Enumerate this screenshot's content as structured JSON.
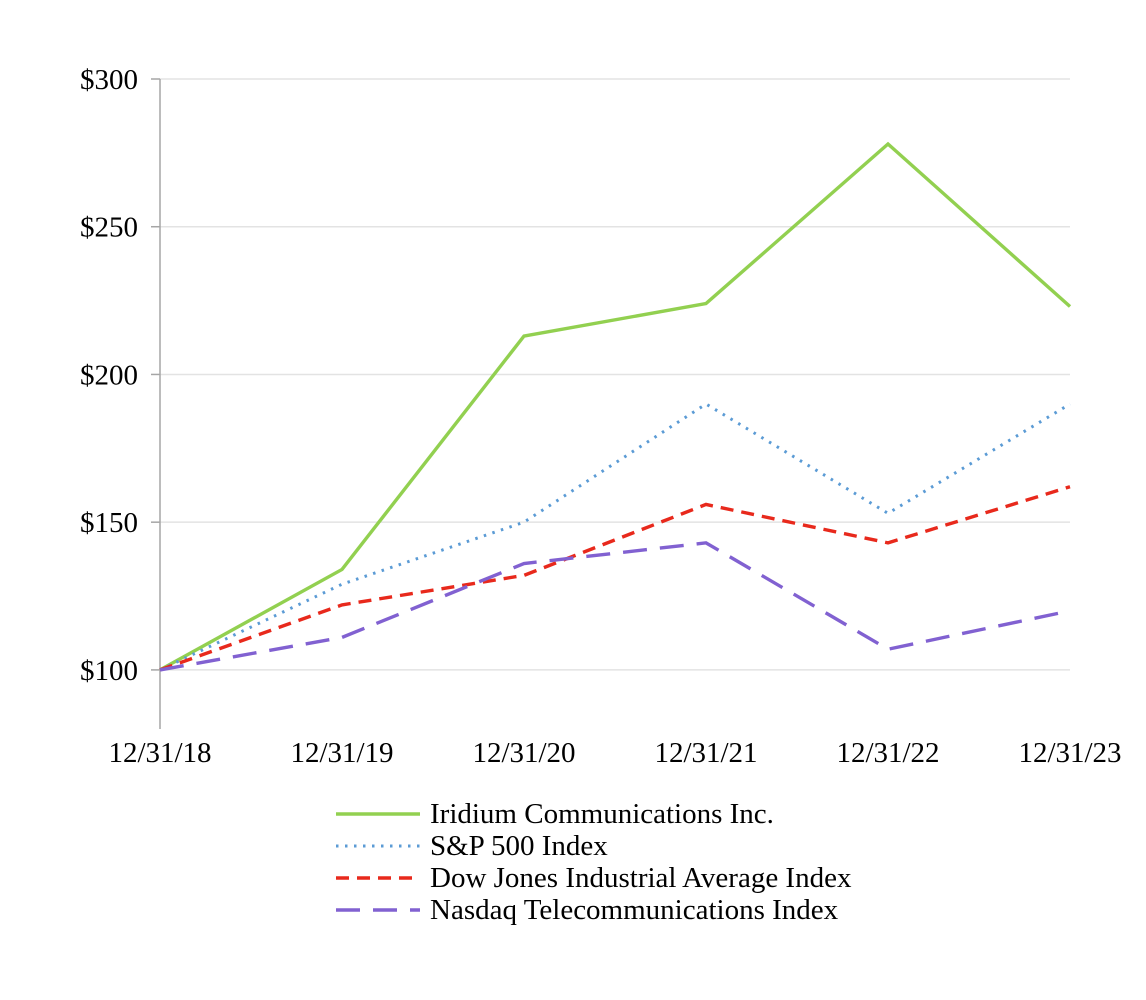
{
  "chart_data": {
    "type": "line",
    "title": "",
    "xlabel": "",
    "ylabel": "",
    "x_categories": [
      "12/31/18",
      "12/31/19",
      "12/31/20",
      "12/31/21",
      "12/31/22",
      "12/31/23"
    ],
    "series": [
      {
        "name": "Iridium Communications Inc.",
        "color": "#92d050",
        "dash": "solid",
        "values": [
          100,
          134,
          213,
          224,
          278,
          223
        ]
      },
      {
        "name": "S&P 500 Index",
        "color": "#5b9bd5",
        "dash": "dotted",
        "values": [
          100,
          129,
          150,
          190,
          153,
          190
        ]
      },
      {
        "name": "Dow Jones Industrial Average Index",
        "color": "#e8291c",
        "dash": "dash",
        "values": [
          100,
          122,
          132,
          156,
          143,
          162
        ]
      },
      {
        "name": "Nasdaq Telecommunications Index",
        "color": "#8161d1",
        "dash": "long-dash",
        "values": [
          100,
          111,
          136,
          143,
          107,
          120
        ]
      }
    ],
    "y_axis": {
      "min": 80,
      "max": 300,
      "tick_values": [
        100,
        150,
        200,
        250,
        300
      ],
      "tick_labels": [
        "$100",
        "$150",
        "$200",
        "$250",
        "$300"
      ]
    },
    "grid": true,
    "legend_position": "bottom-left"
  },
  "colors": {
    "gridline": "#e3e3e3",
    "axis": "#a6a6a6",
    "text": "#000000"
  }
}
